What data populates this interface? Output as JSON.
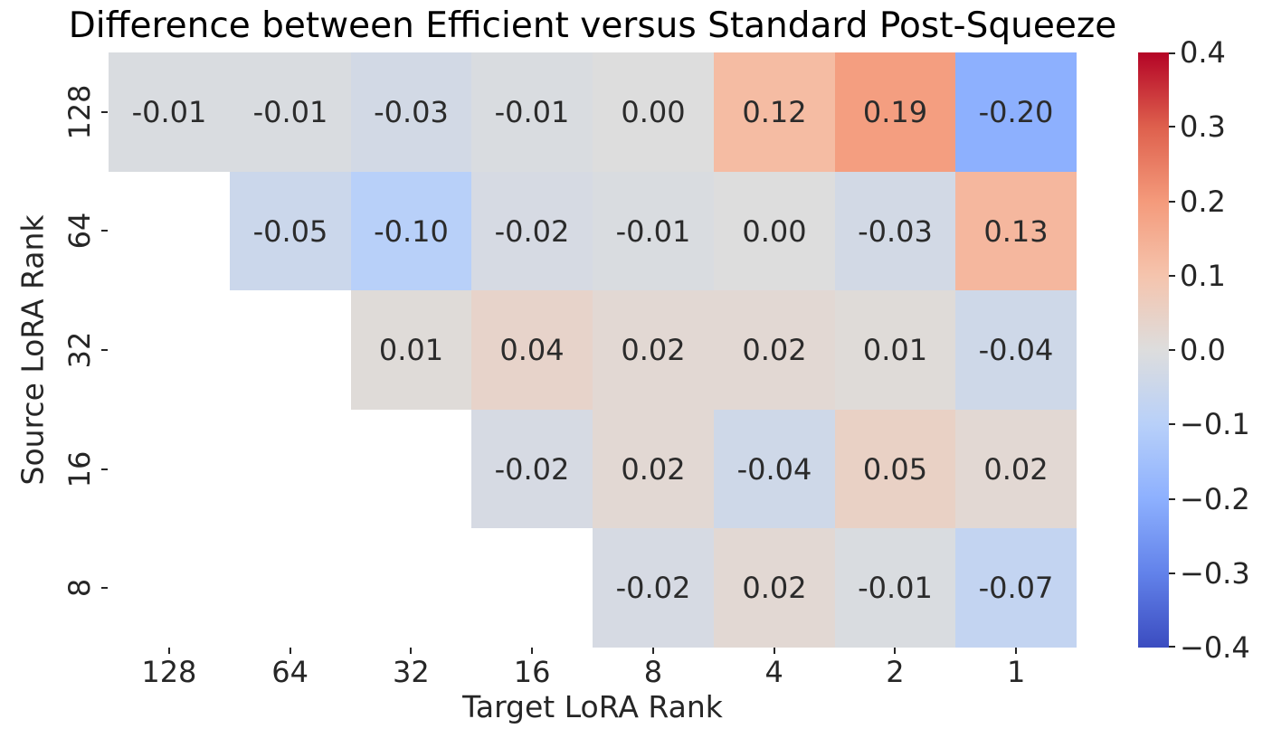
{
  "title": "Difference between Efficient versus Standard Post-Squeeze",
  "chart_data": {
    "type": "heatmap",
    "title": "Difference between Efficient versus Standard Post-Squeeze",
    "xlabel": "Target LoRA Rank",
    "ylabel": "Source LoRA Rank",
    "x_ticklabels": [
      "128",
      "64",
      "32",
      "16",
      "8",
      "4",
      "2",
      "1"
    ],
    "y_ticklabels": [
      "128",
      "64",
      "32",
      "16",
      "8"
    ],
    "vmin": -0.4,
    "vmax": 0.4,
    "colormap": "coolwarm",
    "grid": false,
    "annotation_decimals": 2,
    "colorbar_position": "right",
    "colorbar_ticklabels": [
      "0.4",
      "0.3",
      "0.2",
      "0.1",
      "0.0",
      "−0.1",
      "−0.2",
      "−0.3",
      "−0.4"
    ],
    "rows": [
      {
        "source_rank": "128",
        "values": [
          -0.01,
          -0.01,
          -0.03,
          -0.01,
          0.0,
          0.12,
          0.19,
          -0.2
        ]
      },
      {
        "source_rank": "64",
        "values": [
          null,
          -0.05,
          -0.1,
          -0.02,
          -0.01,
          0.0,
          -0.03,
          0.13
        ]
      },
      {
        "source_rank": "32",
        "values": [
          null,
          null,
          0.01,
          0.04,
          0.02,
          0.02,
          0.01,
          -0.04
        ]
      },
      {
        "source_rank": "16",
        "values": [
          null,
          null,
          null,
          -0.02,
          0.02,
          -0.04,
          0.05,
          0.02
        ]
      },
      {
        "source_rank": "8",
        "values": [
          null,
          null,
          null,
          null,
          -0.02,
          0.02,
          -0.01,
          -0.07
        ]
      }
    ]
  },
  "colors": {
    "annotation_text": "#2b2b2b",
    "tick_text": "#262626",
    "title_text": "#000000",
    "background": "#ffffff",
    "masked_cell": "#ffffff",
    "coolwarm_stops": [
      "#3b4cc0",
      "#6282ea",
      "#8db0fe",
      "#b8d0f9",
      "#dddddd",
      "#f5c4ad",
      "#f49a7b",
      "#de604d",
      "#b40426"
    ]
  }
}
